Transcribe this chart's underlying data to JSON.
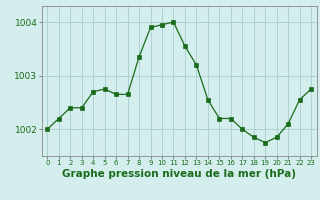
{
  "x": [
    0,
    1,
    2,
    3,
    4,
    5,
    6,
    7,
    8,
    9,
    10,
    11,
    12,
    13,
    14,
    15,
    16,
    17,
    18,
    19,
    20,
    21,
    22,
    23
  ],
  "y": [
    1002.0,
    1002.2,
    1002.4,
    1002.4,
    1002.7,
    1002.75,
    1002.65,
    1002.65,
    1003.35,
    1003.9,
    1003.95,
    1004.0,
    1003.55,
    1003.2,
    1002.55,
    1002.2,
    1002.2,
    1002.0,
    1001.85,
    1001.75,
    1001.85,
    1002.1,
    1002.55,
    1002.75
  ],
  "line_color": "#1a6b1a",
  "marker_color": "#1a6b1a",
  "bg_color": "#d4eeee",
  "grid_color": "#aacccc",
  "tick_label_color": "#1a6b1a",
  "xlabel": "Graphe pression niveau de la mer (hPa)",
  "ylim_min": 1001.5,
  "ylim_max": 1004.3,
  "yticks": [
    1002,
    1003,
    1004
  ],
  "xlabel_fontsize": 7.5,
  "tick_fontsize": 6.5
}
